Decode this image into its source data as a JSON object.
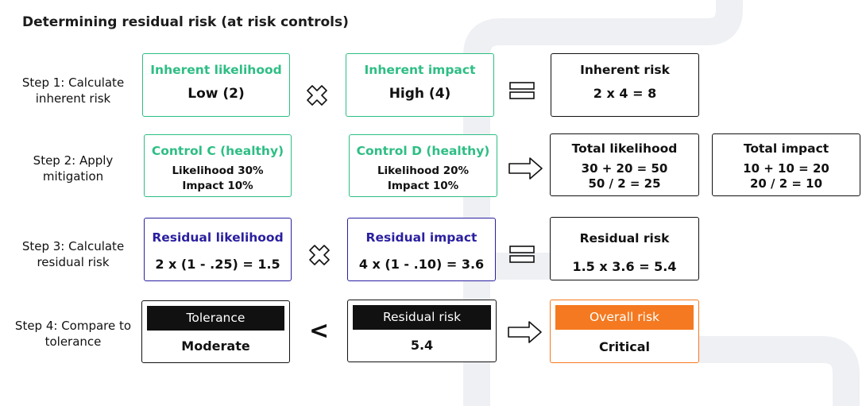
{
  "title": "Determining residual risk (at risk controls)",
  "steps": [
    {
      "label": "Step 1: Calculate inherent risk",
      "likelihood": {
        "header": "Inherent likelihood",
        "value": "Low (2)"
      },
      "impact": {
        "header": "Inherent impact",
        "value": "High (4)"
      },
      "result": {
        "header": "Inherent risk",
        "value": "2 x 4 = 8"
      }
    },
    {
      "label": "Step 2: Apply mitigation",
      "control_c": {
        "header": "Control C (healthy)",
        "line1": "Likelihood 30%",
        "line2": "Impact 10%"
      },
      "control_d": {
        "header": "Control D (healthy)",
        "line1": "Likelihood 20%",
        "line2": "Impact 10%"
      },
      "total_likelihood": {
        "header": "Total likelihood",
        "line1": "30 + 20 = 50",
        "line2": "50 / 2 = 25"
      },
      "total_impact": {
        "header": "Total impact",
        "line1": "10 + 10 = 20",
        "line2": "20 / 2 = 10"
      }
    },
    {
      "label": "Step 3: Calculate residual risk",
      "likelihood": {
        "header": "Residual likelihood",
        "value": "2 x (1 - .25) = 1.5"
      },
      "impact": {
        "header": "Residual impact",
        "value": "4 x (1 - .10) = 3.6"
      },
      "result": {
        "header": "Residual risk",
        "value": "1.5 x 3.6 = 5.4"
      }
    },
    {
      "label": "Step 4: Compare to tolerance",
      "tolerance": {
        "header": "Tolerance",
        "value": "Moderate"
      },
      "operator": "<",
      "residual": {
        "header": "Residual risk",
        "value": "5.4"
      },
      "overall": {
        "header": "Overall risk",
        "value": "Critical"
      }
    }
  ],
  "colors": {
    "green": "#2dbe84",
    "purple": "#2a1fa0",
    "orange": "#f47920",
    "black": "#111111",
    "background_decoration": "#eef0f3"
  }
}
